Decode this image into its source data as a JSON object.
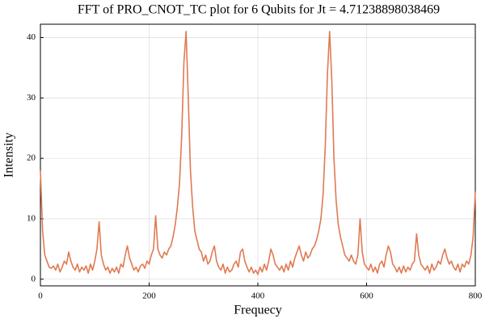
{
  "chart_data": {
    "type": "line",
    "title": "FFT of PRO_CNOT_TC plot for 6 Qubits for Jt = 4.71238898038469",
    "x_label": "Frequecy",
    "y_label": "Intensity",
    "color": "#e07a52",
    "grid": true,
    "xlim": [
      0,
      800
    ],
    "ylim": [
      -1.1,
      42.2
    ],
    "xticks": [
      0,
      200,
      400,
      600,
      800
    ],
    "yticks": [
      0,
      10,
      20,
      30,
      40
    ],
    "x": [
      0,
      4,
      8,
      12,
      16,
      20,
      24,
      28,
      32,
      36,
      40,
      44,
      48,
      52,
      56,
      60,
      64,
      68,
      72,
      76,
      80,
      84,
      88,
      92,
      96,
      100,
      104,
      108,
      112,
      116,
      120,
      124,
      128,
      132,
      136,
      140,
      144,
      148,
      152,
      156,
      160,
      164,
      168,
      172,
      176,
      180,
      184,
      188,
      192,
      196,
      200,
      204,
      208,
      212,
      216,
      220,
      224,
      228,
      232,
      236,
      240,
      244,
      248,
      252,
      256,
      260,
      264,
      268,
      272,
      276,
      280,
      284,
      288,
      292,
      296,
      300,
      304,
      308,
      312,
      316,
      320,
      324,
      328,
      332,
      336,
      340,
      344,
      348,
      352,
      356,
      360,
      364,
      368,
      372,
      376,
      380,
      384,
      388,
      392,
      396,
      400,
      404,
      408,
      412,
      416,
      420,
      424,
      428,
      432,
      436,
      440,
      444,
      448,
      452,
      456,
      460,
      464,
      468,
      472,
      476,
      480,
      484,
      488,
      492,
      496,
      500,
      504,
      508,
      512,
      516,
      520,
      524,
      528,
      532,
      536,
      540,
      544,
      548,
      552,
      556,
      560,
      564,
      568,
      572,
      576,
      580,
      584,
      588,
      592,
      596,
      600,
      604,
      608,
      612,
      616,
      620,
      624,
      628,
      632,
      636,
      640,
      644,
      648,
      652,
      656,
      660,
      664,
      668,
      672,
      676,
      680,
      684,
      688,
      692,
      696,
      700,
      704,
      708,
      712,
      716,
      720,
      724,
      728,
      732,
      736,
      740,
      744,
      748,
      752,
      756,
      760,
      764,
      768,
      772,
      776,
      780,
      784,
      788,
      792,
      796,
      800
    ],
    "values": [
      18,
      8,
      4,
      3,
      2,
      1.8,
      2.2,
      1.5,
      2.5,
      1.2,
      2,
      3,
      2.5,
      4.5,
      3,
      2,
      1.5,
      2.5,
      1.2,
      2,
      1.5,
      2.2,
      1,
      2.5,
      1.5,
      3,
      5,
      9.5,
      4,
      2.5,
      1.5,
      2,
      1,
      1.8,
      1.2,
      2,
      1,
      2.5,
      2,
      4,
      5.5,
      3.5,
      2.5,
      1.5,
      2,
      1.2,
      2.2,
      2.5,
      1.8,
      3,
      2.5,
      4,
      5,
      10.5,
      5,
      4,
      3.5,
      4.5,
      4,
      5,
      5.5,
      7,
      9,
      12,
      16,
      24,
      36,
      41,
      30,
      18,
      12,
      8,
      6.5,
      5,
      4.5,
      3,
      4,
      2.5,
      3,
      4.5,
      5.5,
      3,
      2,
      1.5,
      2.5,
      1,
      2,
      1.2,
      1.5,
      2.5,
      3,
      2,
      4.5,
      5,
      3,
      2,
      1.2,
      2,
      1,
      1.5,
      0.8,
      2,
      1.2,
      2.5,
      1.5,
      3,
      5,
      4,
      2.5,
      2,
      1.5,
      2.2,
      1.2,
      2.5,
      1.5,
      3,
      2,
      3.5,
      4.5,
      5.5,
      4,
      3,
      4.5,
      3.5,
      4,
      5,
      5.5,
      6.5,
      8,
      10,
      14,
      22,
      34,
      41,
      33,
      20,
      13,
      9,
      7,
      5.5,
      4,
      3.5,
      3,
      4,
      3,
      2.5,
      4,
      10,
      4.5,
      2.5,
      2,
      1.5,
      2.5,
      1.2,
      2,
      1,
      2.5,
      3,
      2,
      4,
      5.5,
      4.5,
      2.5,
      2,
      1.2,
      2,
      1,
      2.2,
      1.2,
      2,
      1.5,
      2.5,
      3,
      7.5,
      4,
      2.5,
      2,
      1.5,
      2.2,
      1,
      2.5,
      1.5,
      2,
      3,
      2.5,
      4,
      5,
      3.5,
      2.5,
      3,
      2,
      1.5,
      2.5,
      1.2,
      2.5,
      2,
      3,
      2.5,
      4,
      7,
      14.5
    ]
  }
}
